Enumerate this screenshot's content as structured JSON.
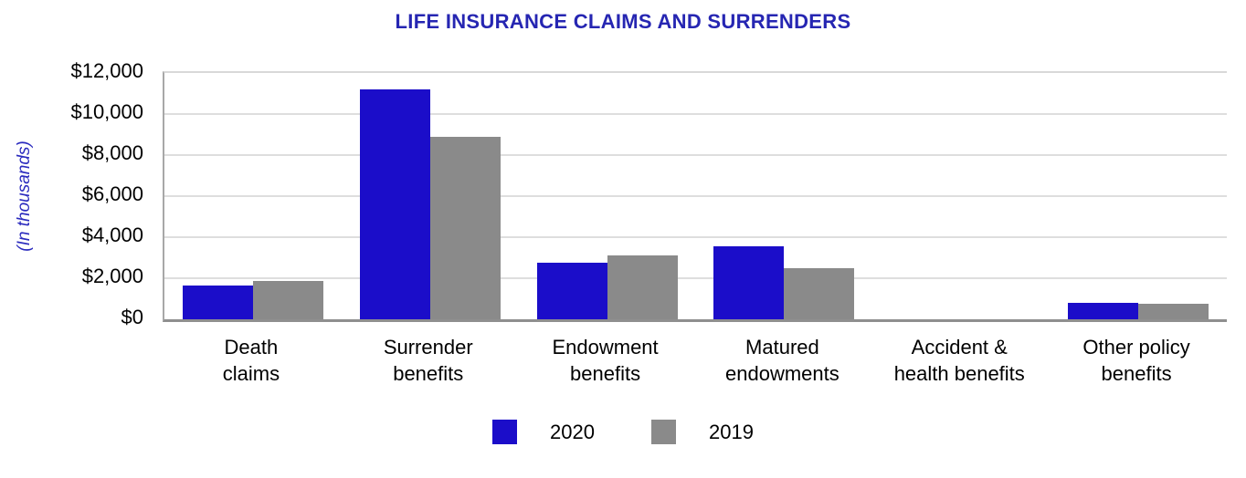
{
  "chart_data": {
    "type": "bar",
    "title": "LIFE INSURANCE CLAIMS AND SURRENDERS",
    "ylabel": "(In thousands)",
    "units": "USD thousands",
    "categories": [
      "Death claims",
      "Surrender benefits",
      "Endowment benefits",
      "Matured endowments",
      "Accident & health benefits",
      "Other policy benefits"
    ],
    "category_lines": [
      [
        "Death",
        "claims"
      ],
      [
        "Surrender",
        "benefits"
      ],
      [
        "Endowment",
        "benefits"
      ],
      [
        "Matured",
        "endowments"
      ],
      [
        "Accident &",
        "health benefits"
      ],
      [
        "Other policy",
        "benefits"
      ]
    ],
    "series": [
      {
        "name": "2020",
        "color": "#1B0DC9",
        "values": [
          1650,
          11200,
          2750,
          3550,
          0,
          800
        ]
      },
      {
        "name": "2019",
        "color": "#8A8A8A",
        "values": [
          1850,
          8900,
          3100,
          2500,
          0,
          775
        ]
      }
    ],
    "ylim": [
      0,
      12000
    ],
    "yticks": [
      0,
      2000,
      4000,
      6000,
      8000,
      10000,
      12000
    ],
    "ytick_labels": [
      "$0",
      "$2,000",
      "$4,000",
      "$6,000",
      "$8,000",
      "$10,000",
      "$12,000"
    ],
    "grid": "horizontal",
    "legend_position": "bottom",
    "xlabel": ""
  },
  "colors": {
    "title_text": "#2626B2",
    "y_axis_title_text": "#2B2BBE",
    "axis_text": "#000000",
    "gridline": "#DEDEDE",
    "axis_line": "#8F8F8F"
  }
}
